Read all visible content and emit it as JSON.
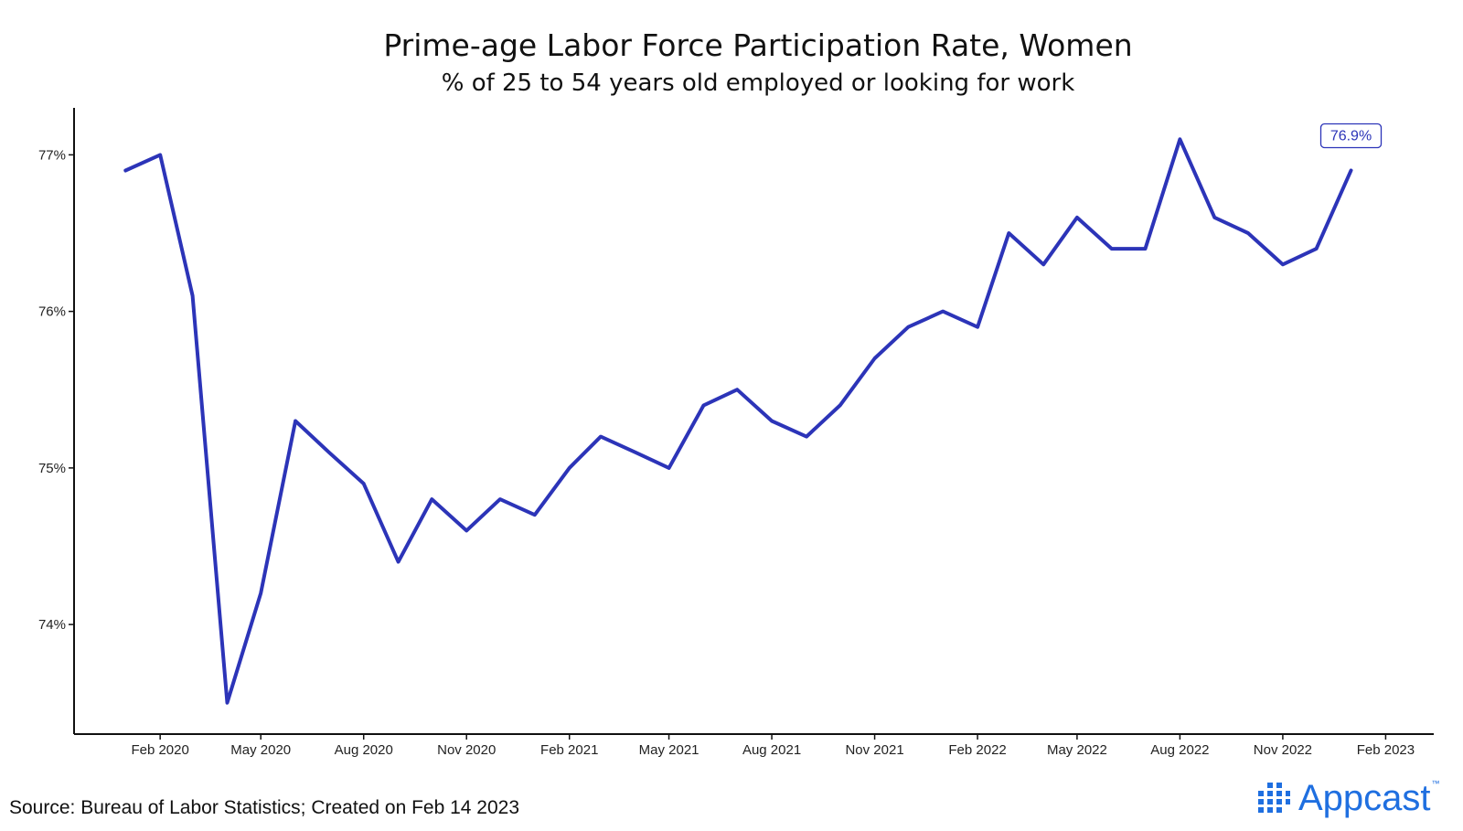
{
  "chart_data": {
    "type": "line",
    "title": "Prime-age Labor Force Participation Rate, Women",
    "subtitle": "% of 25 to 54 years old employed or looking for work",
    "xlabel": "",
    "ylabel": "",
    "x": [
      "2020-01",
      "2020-02",
      "2020-03",
      "2020-04",
      "2020-05",
      "2020-06",
      "2020-07",
      "2020-08",
      "2020-09",
      "2020-10",
      "2020-11",
      "2020-12",
      "2021-01",
      "2021-02",
      "2021-03",
      "2021-04",
      "2021-05",
      "2021-06",
      "2021-07",
      "2021-08",
      "2021-09",
      "2021-10",
      "2021-11",
      "2021-12",
      "2022-01",
      "2022-02",
      "2022-03",
      "2022-04",
      "2022-05",
      "2022-06",
      "2022-07",
      "2022-08",
      "2022-09",
      "2022-10",
      "2022-11",
      "2022-12",
      "2023-01"
    ],
    "series": [
      {
        "name": "",
        "values": [
          76.9,
          77.0,
          76.1,
          73.5,
          74.2,
          75.3,
          75.1,
          74.9,
          74.4,
          74.8,
          74.6,
          74.8,
          74.7,
          75.0,
          75.2,
          75.1,
          75.0,
          75.4,
          75.5,
          75.3,
          75.2,
          75.4,
          75.7,
          75.9,
          76.0,
          75.9,
          76.5,
          76.3,
          76.6,
          76.4,
          76.4,
          77.1,
          76.6,
          76.5,
          76.3,
          76.4,
          76.9
        ]
      }
    ],
    "y_ticks": [
      74,
      75,
      76,
      77
    ],
    "y_tick_labels": [
      "74%",
      "75%",
      "76%",
      "77%"
    ],
    "x_ticks": [
      "2020-02",
      "2020-05",
      "2020-08",
      "2020-11",
      "2021-02",
      "2021-05",
      "2021-08",
      "2021-11",
      "2022-02",
      "2022-05",
      "2022-08",
      "2022-11",
      "2023-02"
    ],
    "x_tick_labels": [
      "Feb 2020",
      "May 2020",
      "Aug 2020",
      "Nov 2020",
      "Feb 2021",
      "May 2021",
      "Aug 2021",
      "Nov 2021",
      "Feb 2022",
      "May 2022",
      "Aug 2022",
      "Nov 2022",
      "Feb 2023"
    ],
    "ylim": [
      73.3,
      77.3
    ],
    "xlim": [
      "2019-11-16",
      "2023-03-16"
    ],
    "grid": false,
    "legend": "none",
    "annotation": {
      "x": "2023-01",
      "label": "76.9%"
    },
    "line_color": "#2c34b8"
  },
  "source": "Source: Bureau of Labor Statistics; Created on Feb 14 2023",
  "logo": {
    "text": "Appcast",
    "trademark": "™",
    "color": "#1f6fe0"
  }
}
